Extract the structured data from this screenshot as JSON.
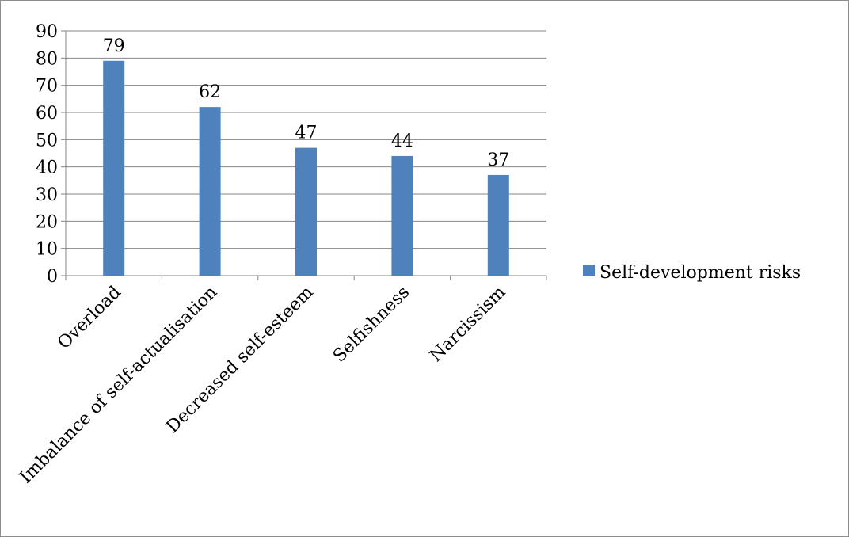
{
  "chart_data": {
    "type": "bar",
    "categories": [
      "Overload",
      "Imbalance of self-actualisation",
      "Decreased self-esteem",
      "Selfishness",
      "Narcissism"
    ],
    "series": [
      {
        "name": "Self-development risks",
        "values": [
          79,
          62,
          47,
          44,
          37
        ],
        "color": "#4F81BD"
      }
    ],
    "data_labels": [
      "79",
      "62",
      "47",
      "44",
      "37"
    ],
    "yticks": [
      "0",
      "10",
      "20",
      "30",
      "40",
      "50",
      "60",
      "70",
      "80",
      "90"
    ],
    "ylim": [
      0,
      90
    ],
    "grid": true,
    "legend_position": "right",
    "x_label_rotation": -45
  }
}
